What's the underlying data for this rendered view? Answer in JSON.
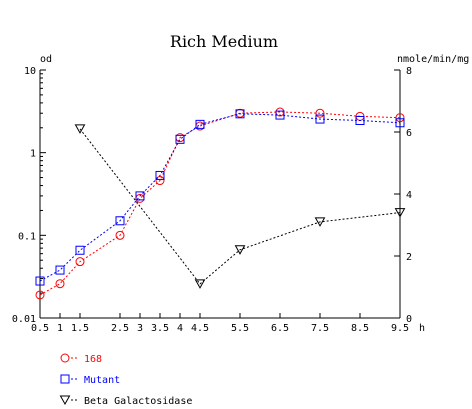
{
  "chart_data": {
    "type": "line",
    "title": "Rich Medium",
    "ylabel_left": "od",
    "ylabel_right": "nmole/min/mg",
    "xlabel": "h",
    "y_left_scale": "log",
    "ylim_left": [
      0.01,
      10
    ],
    "ylim_right": [
      0,
      8
    ],
    "xlim": [
      0.5,
      9.5
    ],
    "x_ticks": [
      0.5,
      1,
      1.5,
      2.5,
      3,
      3.5,
      4,
      4.5,
      5.5,
      6.5,
      7.5,
      8.5,
      9.5
    ],
    "x_tick_labels": [
      "0.5",
      "1",
      "1.5",
      "2.5",
      "3",
      "3.5",
      "4",
      "4.5",
      "5.5",
      "6.5",
      "7.5",
      "8.5",
      "9.5"
    ],
    "y_left_ticks": [
      0.01,
      0.1,
      1,
      10
    ],
    "y_left_tick_labels": [
      "0.01",
      "0.1",
      "1",
      "10"
    ],
    "y_right_ticks": [
      0,
      2,
      4,
      6,
      8
    ],
    "y_right_tick_labels": [
      "0",
      "2",
      "4",
      "6",
      "8"
    ],
    "grid": false,
    "legend_position": "bottom-left",
    "series": [
      {
        "name": "168",
        "axis": "left",
        "marker": "circle",
        "color": "#ff0000",
        "line_style": "dashed",
        "x": [
          0.5,
          1,
          1.5,
          2.5,
          3,
          3.5,
          4,
          4.5,
          5.5,
          6.5,
          7.5,
          8.5,
          9.5
        ],
        "values": [
          0.019,
          0.026,
          0.048,
          0.1,
          0.28,
          0.46,
          1.52,
          2.1,
          3.0,
          3.1,
          3.0,
          2.75,
          2.65
        ]
      },
      {
        "name": "Mutant",
        "axis": "left",
        "marker": "square",
        "color": "#0000ff",
        "line_style": "dashed",
        "x": [
          0.5,
          1,
          1.5,
          2.5,
          3,
          3.5,
          4,
          4.5,
          5.5,
          6.5,
          7.5,
          8.5,
          9.5
        ],
        "values": [
          0.028,
          0.038,
          0.066,
          0.15,
          0.3,
          0.53,
          1.45,
          2.2,
          2.95,
          2.85,
          2.55,
          2.45,
          2.3
        ]
      },
      {
        "name": "Beta Galactosidase",
        "axis": "right",
        "marker": "triangle-down",
        "color": "#000000",
        "line_style": "dashed",
        "x": [
          1.5,
          4.5,
          5.5,
          7.5,
          9.5
        ],
        "values": [
          6.1,
          1.1,
          2.2,
          3.1,
          3.4
        ]
      }
    ]
  }
}
